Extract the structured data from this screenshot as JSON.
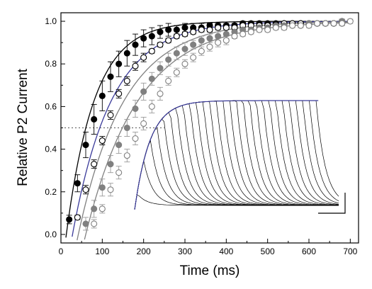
{
  "chart_data": {
    "type": "scatter",
    "xlabel": "Time (ms)",
    "ylabel": "Relative P2 Current",
    "xlim": [
      0,
      720
    ],
    "ylim": [
      -0.04,
      1.04
    ],
    "xticks": [
      0,
      100,
      200,
      300,
      400,
      500,
      600,
      700
    ],
    "xtick_labels": [
      "0",
      "100",
      "200",
      "300",
      "400",
      "500",
      "600",
      "700"
    ],
    "yticks": [
      0.0,
      0.2,
      0.4,
      0.6,
      0.8,
      1.0
    ],
    "ytick_labels": [
      "0.0",
      "0.2",
      "0.4",
      "0.6",
      "0.8",
      "1.0"
    ],
    "reference_line": {
      "y": 0.5,
      "x_range": [
        0,
        250
      ],
      "style": "dotted"
    },
    "series": [
      {
        "marker": "filled-circle",
        "color": "#000000",
        "fit_color": "#000000",
        "x": [
          20,
          40,
          60,
          80,
          100,
          120,
          140,
          160,
          180,
          200,
          220,
          240,
          260,
          280,
          300,
          320,
          340,
          360,
          380,
          400,
          420,
          440,
          460,
          480,
          500,
          520,
          540,
          560,
          580,
          600,
          620,
          640,
          660,
          680
        ],
        "y": [
          0.07,
          0.24,
          0.42,
          0.54,
          0.65,
          0.74,
          0.8,
          0.85,
          0.89,
          0.92,
          0.93,
          0.95,
          0.96,
          0.96,
          0.97,
          0.97,
          0.97,
          0.98,
          0.98,
          0.98,
          0.98,
          0.99,
          0.99,
          0.99,
          0.99,
          0.99,
          0.99,
          0.99,
          0.99,
          0.99,
          0.99,
          0.99,
          0.99,
          0.99
        ],
        "err": [
          0.02,
          0.04,
          0.06,
          0.07,
          0.07,
          0.07,
          0.06,
          0.06,
          0.05,
          0.04,
          0.04,
          0.03,
          0.03,
          0.02,
          0.02,
          0.02,
          0.02,
          0.01,
          0.01,
          0.01,
          0.01,
          0.01,
          0.01,
          0.01,
          0.01,
          0.01,
          0.01,
          0.01,
          0.01,
          0.01,
          0.01,
          0.01,
          0.01,
          0.01
        ],
        "fit": {
          "t0": 13,
          "tau": 68
        }
      },
      {
        "marker": "open-circle",
        "color": "#000000",
        "fit_color": "#3a3a9a",
        "x": [
          40,
          60,
          80,
          100,
          120,
          140,
          160,
          180,
          200,
          220,
          240,
          260,
          280,
          300,
          320,
          340,
          360,
          380,
          400,
          420,
          440,
          460,
          480,
          500,
          520,
          540,
          560,
          580,
          600,
          620,
          640,
          660,
          680
        ],
        "y": [
          0.08,
          0.21,
          0.33,
          0.44,
          0.56,
          0.66,
          0.72,
          0.79,
          0.83,
          0.86,
          0.89,
          0.91,
          0.93,
          0.94,
          0.95,
          0.96,
          0.96,
          0.97,
          0.97,
          0.97,
          0.98,
          0.98,
          0.98,
          0.98,
          0.98,
          0.99,
          0.99,
          0.99,
          0.99,
          0.99,
          0.99,
          0.99,
          1.0
        ],
        "err": [
          0.01,
          0.02,
          0.02,
          0.02,
          0.02,
          0.02,
          0.02,
          0.02,
          0.02,
          0.01,
          0.01,
          0.01,
          0.01,
          0.01,
          0.01,
          0.01,
          0.01,
          0.01,
          0.01,
          0.01,
          0.01,
          0.01,
          0.01,
          0.01,
          0.01,
          0.01,
          0.01,
          0.01,
          0.01,
          0.01,
          0.01,
          0.01,
          0.01
        ],
        "fit": {
          "t0": 28,
          "tau": 95
        }
      },
      {
        "marker": "filled-circle",
        "color": "#808080",
        "fit_color": "#808080",
        "x": [
          60,
          80,
          100,
          120,
          140,
          160,
          180,
          200,
          220,
          240,
          260,
          280,
          300,
          320,
          340,
          360,
          380,
          400,
          420,
          440,
          460,
          480,
          500,
          520,
          540,
          560,
          580,
          600,
          620,
          640,
          660,
          680
        ],
        "y": [
          0.05,
          0.12,
          0.22,
          0.33,
          0.42,
          0.5,
          0.59,
          0.67,
          0.73,
          0.78,
          0.82,
          0.85,
          0.87,
          0.89,
          0.91,
          0.92,
          0.93,
          0.94,
          0.95,
          0.96,
          0.96,
          0.97,
          0.97,
          0.98,
          0.98,
          0.98,
          0.98,
          0.99,
          0.99,
          0.99,
          0.99,
          1.0
        ],
        "err": [
          0.03,
          0.04,
          0.04,
          0.04,
          0.04,
          0.04,
          0.04,
          0.04,
          0.03,
          0.03,
          0.03,
          0.03,
          0.03,
          0.02,
          0.02,
          0.02,
          0.02,
          0.02,
          0.02,
          0.02,
          0.01,
          0.01,
          0.01,
          0.01,
          0.01,
          0.01,
          0.01,
          0.01,
          0.01,
          0.01,
          0.01,
          0.01
        ],
        "fit": {
          "t0": 42,
          "tau": 112
        }
      },
      {
        "marker": "open-circle",
        "color": "#808080",
        "fit_color": "#808080",
        "x": [
          80,
          100,
          120,
          140,
          160,
          180,
          200,
          220,
          240,
          260,
          280,
          300,
          320,
          340,
          360,
          380,
          400,
          420,
          440,
          460,
          480,
          500,
          520,
          540,
          560,
          580,
          600,
          620,
          640,
          660,
          680,
          700
        ],
        "y": [
          0.05,
          0.12,
          0.21,
          0.29,
          0.37,
          0.45,
          0.52,
          0.6,
          0.66,
          0.72,
          0.76,
          0.8,
          0.83,
          0.86,
          0.88,
          0.9,
          0.91,
          0.93,
          0.94,
          0.95,
          0.96,
          0.96,
          0.97,
          0.97,
          0.98,
          0.98,
          0.98,
          0.99,
          0.99,
          0.99,
          0.99,
          1.0
        ],
        "err": [
          0.02,
          0.02,
          0.03,
          0.03,
          0.03,
          0.03,
          0.03,
          0.03,
          0.03,
          0.02,
          0.02,
          0.02,
          0.02,
          0.02,
          0.02,
          0.02,
          0.02,
          0.01,
          0.01,
          0.01,
          0.01,
          0.01,
          0.01,
          0.01,
          0.01,
          0.01,
          0.01,
          0.01,
          0.01,
          0.01,
          0.01,
          0.01
        ],
        "fit": {
          "t0": 60,
          "tau": 128
        }
      }
    ],
    "inset": {
      "description_free": true,
      "trace_count": 28,
      "trace_color": "#000000",
      "envelope_color": "#3a3a9a"
    }
  }
}
